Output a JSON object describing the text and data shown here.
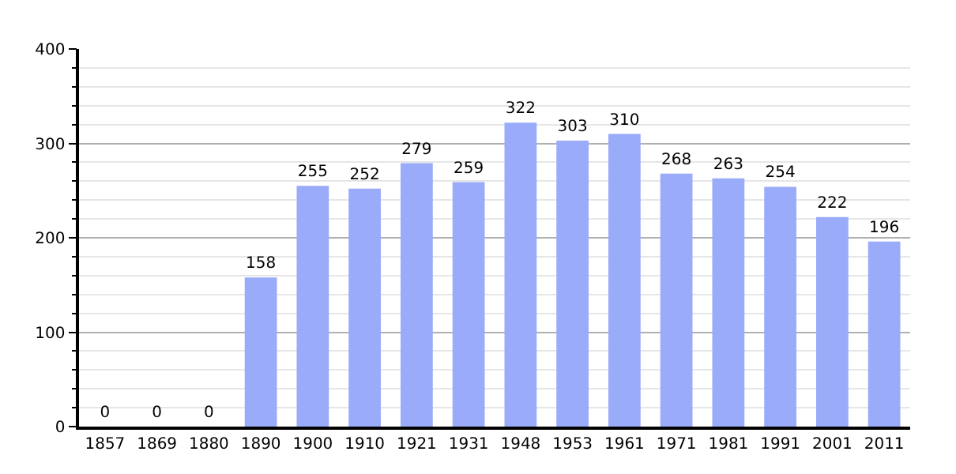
{
  "chart_data": {
    "type": "bar",
    "categories": [
      "1857",
      "1869",
      "1880",
      "1890",
      "1900",
      "1910",
      "1921",
      "1931",
      "1948",
      "1953",
      "1961",
      "1971",
      "1981",
      "1991",
      "2001",
      "2011"
    ],
    "values": [
      0,
      0,
      0,
      158,
      255,
      252,
      279,
      259,
      322,
      303,
      310,
      268,
      263,
      254,
      222,
      196
    ],
    "color": "#9aabf9",
    "data_labels": true,
    "ylim": [
      0,
      400
    ],
    "yticks": [
      0,
      {
        "value": 20,
        "label": null
      },
      {
        "value": 40,
        "label": null
      },
      {
        "value": 60,
        "label": null
      },
      {
        "value": 80,
        "label": null
      },
      100,
      {
        "value": 120,
        "label": null
      },
      {
        "value": 140,
        "label": null
      },
      {
        "value": 160,
        "label": null
      },
      {
        "value": 180,
        "label": null
      },
      200,
      {
        "value": 220,
        "label": null
      },
      {
        "value": 240,
        "label": null
      },
      {
        "value": 260,
        "label": null
      },
      {
        "value": 280,
        "label": null
      },
      300,
      {
        "value": 320,
        "label": null
      },
      {
        "value": 340,
        "label": null
      },
      {
        "value": 360,
        "label": null
      },
      {
        "value": 380,
        "label": null
      },
      400
    ],
    "grid": "y"
  }
}
